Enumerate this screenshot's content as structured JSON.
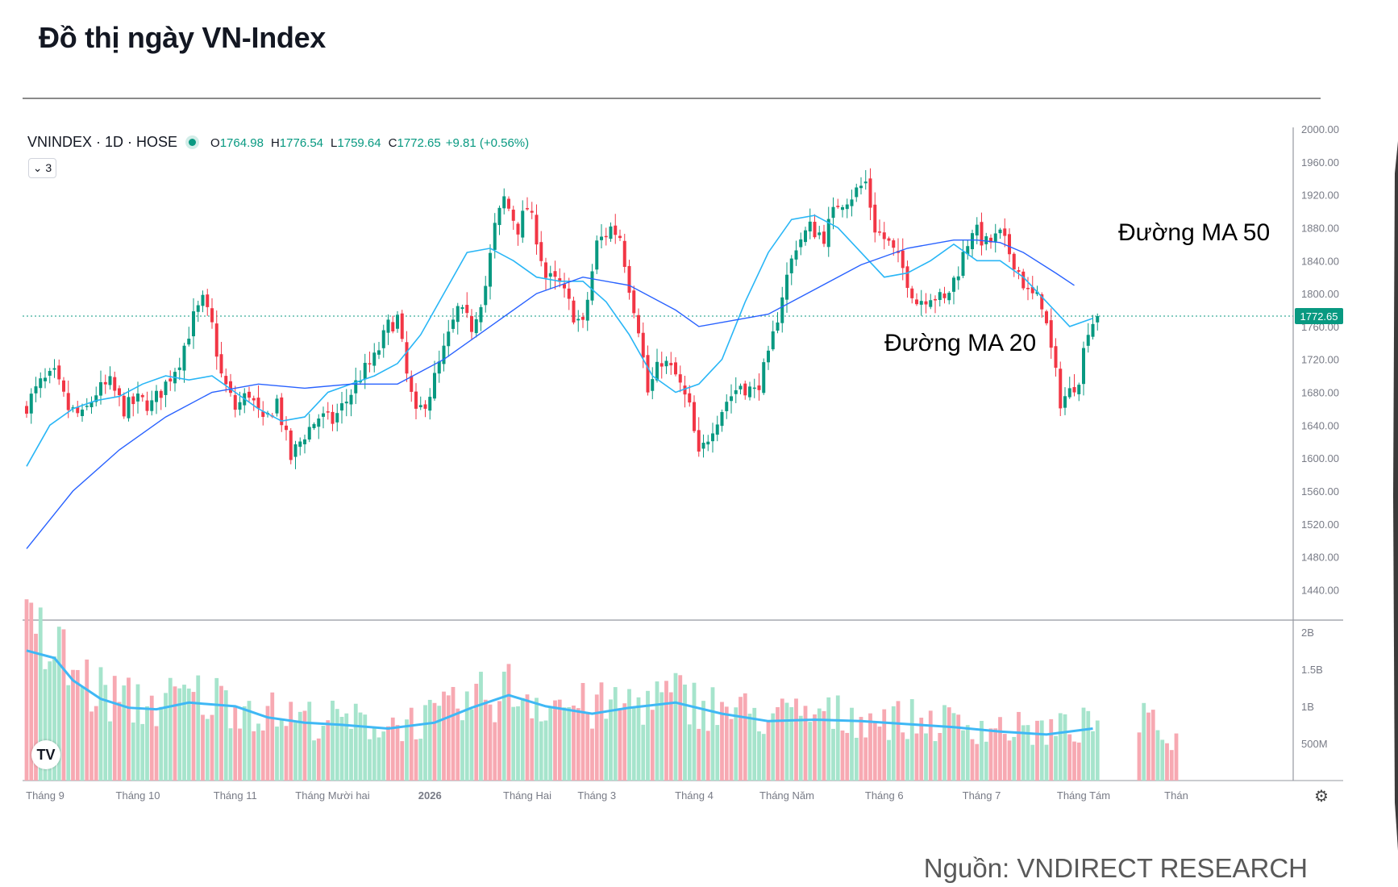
{
  "page_title": "Đồ thị ngày VN-Index",
  "source_note": "Nguồn: VNDIRECT RESEARCH",
  "legend": {
    "symbol": "VNINDEX · 1D · HOSE",
    "open_key": "O",
    "open": "1764.98",
    "high_key": "H",
    "high": "1776.54",
    "low_key": "L",
    "low": "1759.64",
    "close_key": "C",
    "close": "1772.65",
    "change": "+9.81 (+0.56%)"
  },
  "collapse_button": "3",
  "logo_text": "TV",
  "annotations": {
    "ma50": "Đường MA 50",
    "ma20": "Đường MA 20"
  },
  "colors": {
    "up": "#089981",
    "down": "#f23645",
    "ma20": "#29b6f6",
    "ma50": "#2962ff",
    "vol_up": "#a6e4cc",
    "vol_down": "#f7a9b2",
    "vol_ma": "#3fb8f5",
    "last_price": "#089981"
  },
  "chart_data": {
    "type": "candlestick",
    "price_axis": {
      "ylim": [
        1410,
        2000
      ],
      "ticks": [
        2000,
        1960,
        1920,
        1880,
        1840,
        1800,
        1760,
        1720,
        1680,
        1640,
        1600,
        1560,
        1520,
        1480,
        1440
      ],
      "tick_labels": [
        "2000.00",
        "1960.00",
        "1920.00",
        "1880.00",
        "1840.00",
        "1800.00",
        "1760.00",
        "1720.00",
        "1680.00",
        "1640.00",
        "1600.00",
        "1560.00",
        "1520.00",
        "1480.00",
        "1440.00"
      ]
    },
    "volume_axis": {
      "ylim": [
        0,
        2150000000
      ],
      "ticks": [
        2000000000,
        1500000000,
        1000000000,
        500000000
      ],
      "tick_labels": [
        "2B",
        "1.5B",
        "1B",
        "500M"
      ]
    },
    "last_price": 1772.65,
    "last_price_label": "1772.65",
    "x_labels": [
      {
        "label": "Tháng 9",
        "index": 4
      },
      {
        "label": "Tháng 10",
        "index": 24
      },
      {
        "label": "Tháng 11",
        "index": 45
      },
      {
        "label": "Tháng Mười hai",
        "index": 66
      },
      {
        "label": "2026",
        "index": 87
      },
      {
        "label": "Tháng Hai",
        "index": 108
      },
      {
        "label": "Tháng 3",
        "index": 123
      },
      {
        "label": "Tháng 4",
        "index": 144
      },
      {
        "label": "Tháng Năm",
        "index": 164
      },
      {
        "label": "Tháng 6",
        "index": 185
      },
      {
        "label": "Tháng 7",
        "index": 206
      },
      {
        "label": "Tháng Tám",
        "index": 228
      },
      {
        "label": "Thán",
        "index": 248
      }
    ],
    "close_path": [
      [
        0,
        1665
      ],
      [
        3,
        1690
      ],
      [
        6,
        1700
      ],
      [
        9,
        1660
      ],
      [
        12,
        1650
      ],
      [
        15,
        1680
      ],
      [
        18,
        1690
      ],
      [
        21,
        1660
      ],
      [
        24,
        1670
      ],
      [
        27,
        1665
      ],
      [
        30,
        1690
      ],
      [
        33,
        1720
      ],
      [
        36,
        1770
      ],
      [
        38,
        1790
      ],
      [
        40,
        1760
      ],
      [
        42,
        1700
      ],
      [
        45,
        1660
      ],
      [
        48,
        1680
      ],
      [
        51,
        1640
      ],
      [
        54,
        1670
      ],
      [
        57,
        1600
      ],
      [
        60,
        1630
      ],
      [
        63,
        1650
      ],
      [
        66,
        1645
      ],
      [
        69,
        1670
      ],
      [
        72,
        1700
      ],
      [
        75,
        1720
      ],
      [
        78,
        1760
      ],
      [
        80,
        1770
      ],
      [
        82,
        1700
      ],
      [
        84,
        1650
      ],
      [
        87,
        1680
      ],
      [
        90,
        1730
      ],
      [
        93,
        1780
      ],
      [
        96,
        1760
      ],
      [
        99,
        1810
      ],
      [
        101,
        1880
      ],
      [
        103,
        1915
      ],
      [
        106,
        1880
      ],
      [
        108,
        1905
      ],
      [
        110,
        1870
      ],
      [
        112,
        1820
      ],
      [
        115,
        1810
      ],
      [
        118,
        1775
      ],
      [
        120,
        1760
      ],
      [
        123,
        1860
      ],
      [
        126,
        1880
      ],
      [
        128,
        1870
      ],
      [
        130,
        1810
      ],
      [
        132,
        1760
      ],
      [
        134,
        1680
      ],
      [
        137,
        1720
      ],
      [
        140,
        1700
      ],
      [
        143,
        1660
      ],
      [
        145,
        1600
      ],
      [
        148,
        1640
      ],
      [
        151,
        1670
      ],
      [
        154,
        1690
      ],
      [
        157,
        1680
      ],
      [
        160,
        1720
      ],
      [
        163,
        1800
      ],
      [
        166,
        1860
      ],
      [
        169,
        1880
      ],
      [
        172,
        1870
      ],
      [
        175,
        1910
      ],
      [
        178,
        1920
      ],
      [
        181,
        1935
      ],
      [
        183,
        1880
      ],
      [
        186,
        1860
      ],
      [
        189,
        1830
      ],
      [
        192,
        1790
      ],
      [
        195,
        1800
      ],
      [
        198,
        1790
      ],
      [
        201,
        1830
      ],
      [
        204,
        1880
      ],
      [
        207,
        1860
      ],
      [
        210,
        1870
      ],
      [
        213,
        1840
      ],
      [
        216,
        1800
      ],
      [
        219,
        1790
      ],
      [
        221,
        1730
      ],
      [
        223,
        1670
      ],
      [
        225,
        1680
      ],
      [
        227,
        1700
      ],
      [
        229,
        1760
      ],
      [
        231,
        1773
      ]
    ],
    "ma20_path": [
      [
        0,
        1590
      ],
      [
        5,
        1640
      ],
      [
        10,
        1660
      ],
      [
        15,
        1670
      ],
      [
        20,
        1675
      ],
      [
        25,
        1690
      ],
      [
        30,
        1700
      ],
      [
        35,
        1695
      ],
      [
        40,
        1700
      ],
      [
        45,
        1680
      ],
      [
        50,
        1660
      ],
      [
        55,
        1645
      ],
      [
        60,
        1650
      ],
      [
        65,
        1680
      ],
      [
        70,
        1690
      ],
      [
        75,
        1700
      ],
      [
        80,
        1715
      ],
      [
        85,
        1750
      ],
      [
        90,
        1800
      ],
      [
        95,
        1850
      ],
      [
        100,
        1855
      ],
      [
        105,
        1840
      ],
      [
        110,
        1820
      ],
      [
        115,
        1815
      ],
      [
        120,
        1815
      ],
      [
        125,
        1790
      ],
      [
        130,
        1750
      ],
      [
        135,
        1700
      ],
      [
        140,
        1680
      ],
      [
        145,
        1690
      ],
      [
        150,
        1720
      ],
      [
        155,
        1790
      ],
      [
        160,
        1850
      ],
      [
        165,
        1890
      ],
      [
        170,
        1895
      ],
      [
        175,
        1880
      ],
      [
        180,
        1850
      ],
      [
        185,
        1820
      ],
      [
        190,
        1825
      ],
      [
        195,
        1840
      ],
      [
        200,
        1860
      ],
      [
        205,
        1840
      ],
      [
        210,
        1840
      ],
      [
        215,
        1820
      ],
      [
        220,
        1790
      ],
      [
        225,
        1760
      ],
      [
        230,
        1770
      ]
    ],
    "ma50_path": [
      [
        0,
        1490
      ],
      [
        10,
        1560
      ],
      [
        20,
        1610
      ],
      [
        30,
        1650
      ],
      [
        40,
        1680
      ],
      [
        50,
        1690
      ],
      [
        60,
        1685
      ],
      [
        70,
        1690
      ],
      [
        80,
        1690
      ],
      [
        90,
        1720
      ],
      [
        100,
        1760
      ],
      [
        110,
        1800
      ],
      [
        120,
        1820
      ],
      [
        130,
        1810
      ],
      [
        140,
        1780
      ],
      [
        145,
        1760
      ],
      [
        150,
        1765
      ],
      [
        160,
        1775
      ],
      [
        170,
        1805
      ],
      [
        180,
        1835
      ],
      [
        190,
        1855
      ],
      [
        200,
        1865
      ],
      [
        205,
        1865
      ],
      [
        210,
        1862
      ],
      [
        215,
        1850
      ],
      [
        222,
        1825
      ],
      [
        226,
        1810
      ]
    ],
    "volume_path": [
      [
        0,
        1750000000
      ],
      [
        6,
        1650000000
      ],
      [
        10,
        1350000000
      ],
      [
        16,
        1100000000
      ],
      [
        22,
        980000000
      ],
      [
        28,
        960000000
      ],
      [
        35,
        1050000000
      ],
      [
        45,
        1000000000
      ],
      [
        52,
        850000000
      ],
      [
        60,
        780000000
      ],
      [
        68,
        750000000
      ],
      [
        78,
        700000000
      ],
      [
        88,
        780000000
      ],
      [
        96,
        980000000
      ],
      [
        104,
        1150000000
      ],
      [
        112,
        1000000000
      ],
      [
        122,
        900000000
      ],
      [
        130,
        980000000
      ],
      [
        140,
        1050000000
      ],
      [
        150,
        900000000
      ],
      [
        160,
        800000000
      ],
      [
        170,
        820000000
      ],
      [
        180,
        800000000
      ],
      [
        190,
        760000000
      ],
      [
        200,
        720000000
      ],
      [
        210,
        660000000
      ],
      [
        220,
        620000000
      ],
      [
        230,
        700000000
      ],
      [
        240,
        760000000
      ],
      [
        248,
        520000000
      ]
    ]
  }
}
